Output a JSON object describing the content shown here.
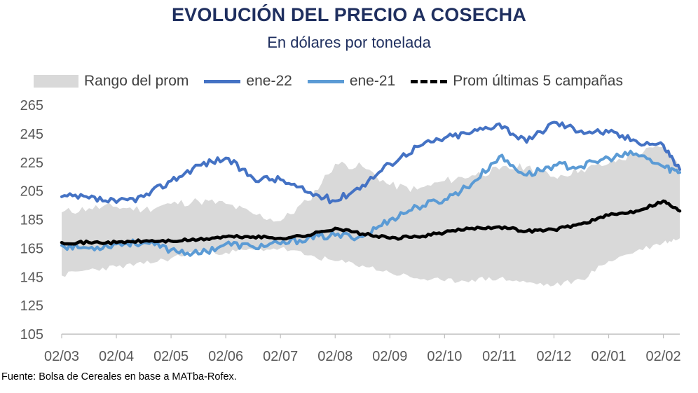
{
  "chart_data": {
    "type": "line",
    "title": "EVOLUCIÓN DEL PRECIO A COSECHA",
    "subtitle": "En dólares por tonelada",
    "xlabel": "",
    "ylabel": "",
    "ylim": [
      105,
      265
    ],
    "yticks": [
      105,
      125,
      145,
      165,
      185,
      205,
      225,
      245,
      265
    ],
    "categories": [
      "02/03",
      "02/04",
      "02/05",
      "02/06",
      "02/07",
      "02/08",
      "02/09",
      "02/10",
      "02/11",
      "02/12",
      "02/01",
      "02/02"
    ],
    "x": [
      0,
      0.5,
      1,
      1.5,
      2,
      2.5,
      3,
      3.5,
      4,
      4.5,
      5,
      5.5,
      6,
      6.5,
      7,
      7.5,
      8,
      8.5,
      9,
      9.5,
      10,
      10.5,
      11,
      11.3
    ],
    "series": [
      {
        "name": "Rango del prom",
        "kind": "range",
        "low": [
          146,
          150,
          152,
          154,
          158,
          163,
          162,
          164,
          165,
          160,
          156,
          153,
          148,
          144,
          142,
          143,
          144,
          141,
          139,
          143,
          156,
          163,
          169,
          172
        ],
        "high": [
          190,
          193,
          194,
          192,
          196,
          198,
          196,
          189,
          184,
          198,
          224,
          222,
          209,
          206,
          212,
          216,
          220,
          222,
          215,
          220,
          224,
          231,
          236,
          222
        ]
      },
      {
        "name": "ene-22",
        "kind": "line",
        "color": "#4472c4",
        "values": [
          201,
          200,
          197,
          201,
          212,
          223,
          228,
          214,
          213,
          204,
          198,
          209,
          224,
          236,
          242,
          246,
          252,
          239,
          253,
          247,
          246,
          240,
          237,
          220
        ]
      },
      {
        "name": "ene-21",
        "kind": "line",
        "color": "#5b9bd5",
        "values": [
          167,
          165,
          168,
          169,
          164,
          161,
          168,
          166,
          168,
          172,
          174,
          173,
          185,
          194,
          199,
          210,
          229,
          216,
          223,
          222,
          228,
          231,
          222,
          218
        ]
      },
      {
        "name": "Prom últimas 5 campañas",
        "kind": "dashed",
        "color": "#000000",
        "values": [
          169,
          169,
          169,
          170,
          170,
          171,
          173,
          173,
          172,
          174,
          179,
          175,
          172,
          173,
          176,
          179,
          180,
          177,
          178,
          182,
          188,
          191,
          198,
          191
        ]
      }
    ],
    "legend_position": "top"
  },
  "source": "Fuente: Bolsa de Cereales en base a MATba-Rofex."
}
